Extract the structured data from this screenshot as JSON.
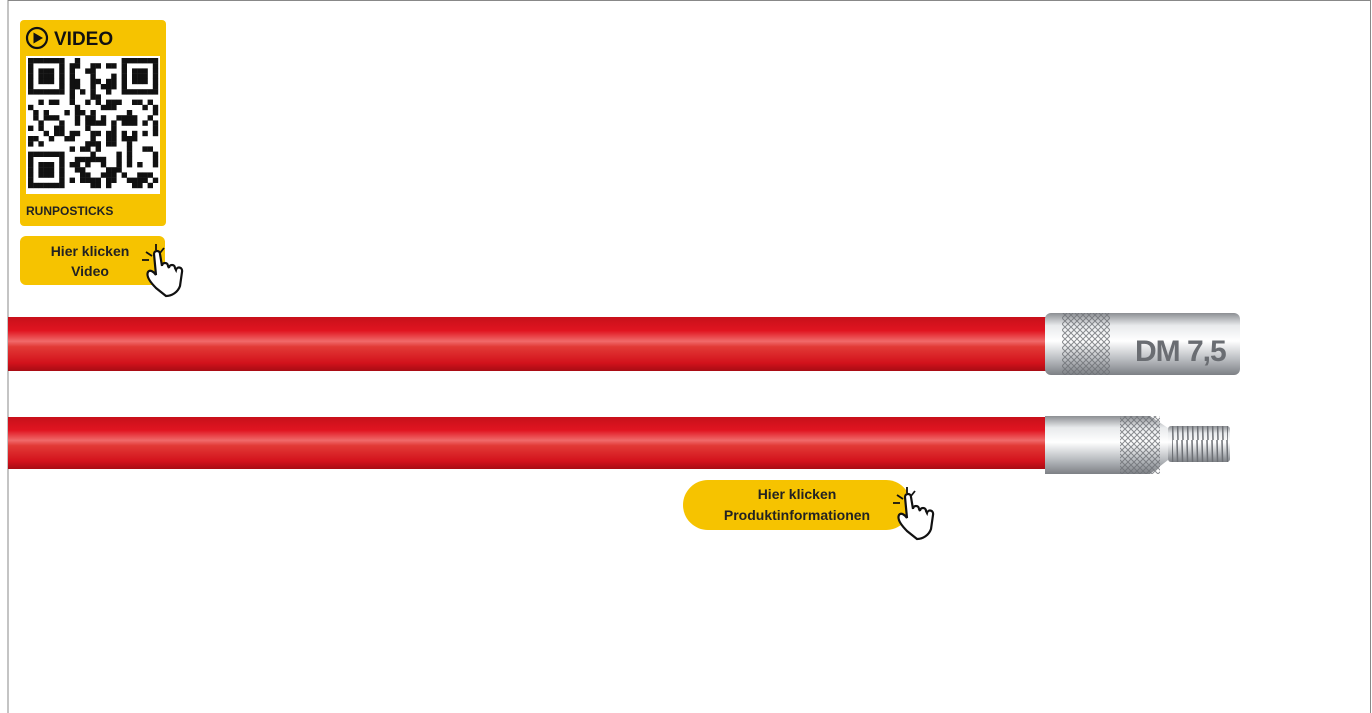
{
  "video_badge": {
    "label": "VIDEO",
    "caption": "RUNPOSTICKS"
  },
  "video_button": {
    "line1": "Hier klicken",
    "line2": "Video"
  },
  "rod": {
    "marking": "DM 7,5"
  },
  "info_button": {
    "line1": "Hier klicken",
    "line2": "Produktinformationen"
  }
}
